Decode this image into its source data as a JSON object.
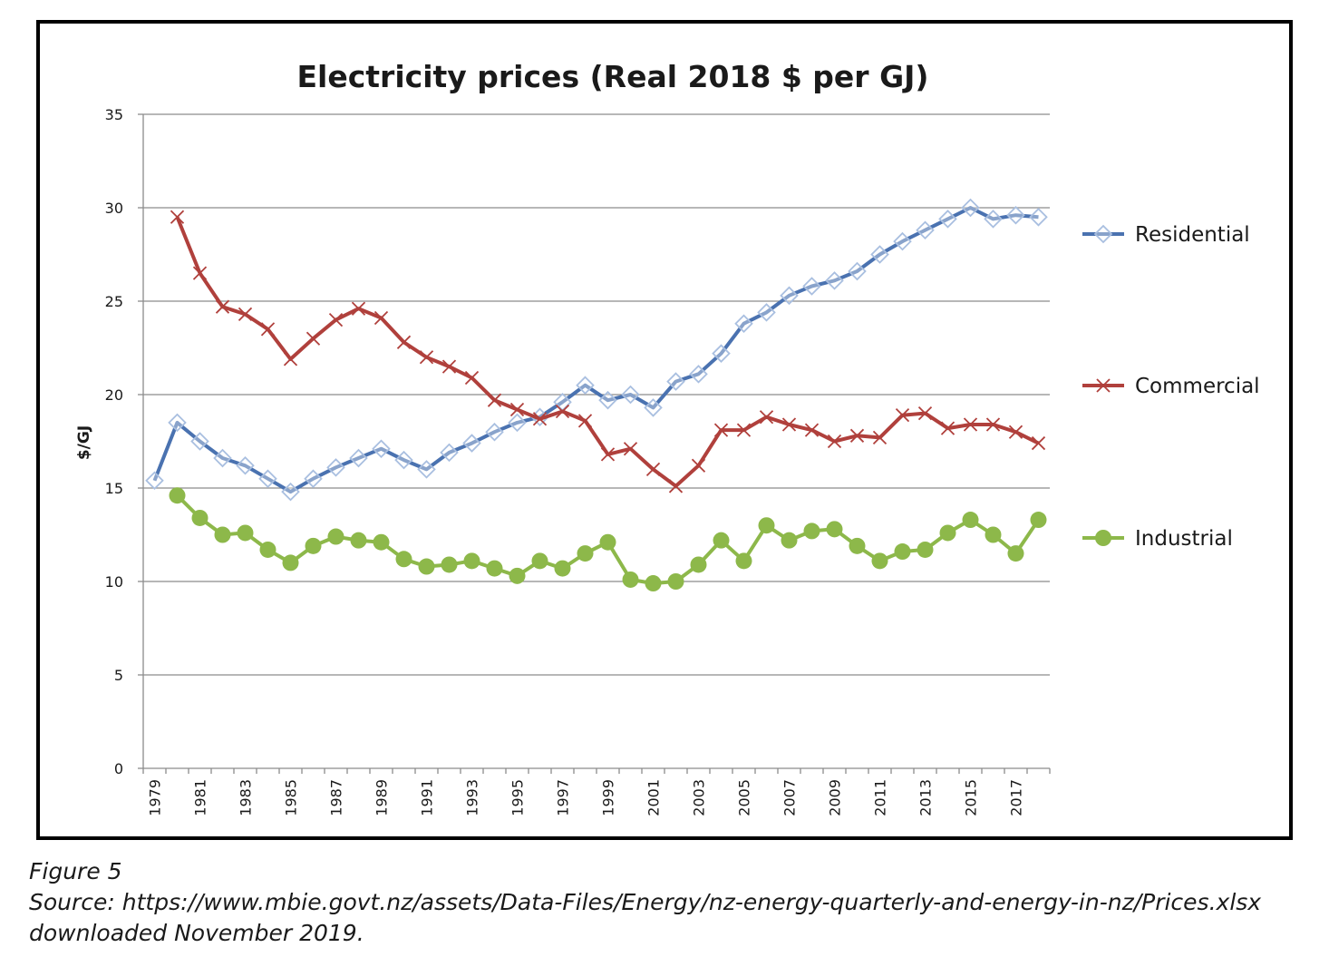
{
  "caption": {
    "figure": "Figure 5",
    "source": "Source: https://www.mbie.govt.nz/assets/Data-Files/Energy/nz-energy-quarterly-and-energy-in-nz/Prices.xlsx",
    "downloaded": "downloaded November 2019."
  },
  "chart_data": {
    "type": "line",
    "title": "Electricity prices (Real 2018 $ per GJ)",
    "xlabel": "",
    "ylabel": "$/GJ",
    "ylim": [
      0,
      35
    ],
    "yticks": [
      0,
      5,
      10,
      15,
      20,
      25,
      30,
      35
    ],
    "x": [
      1979,
      1980,
      1981,
      1982,
      1983,
      1984,
      1985,
      1986,
      1987,
      1988,
      1989,
      1990,
      1991,
      1992,
      1993,
      1994,
      1995,
      1996,
      1997,
      1998,
      1999,
      2000,
      2001,
      2002,
      2003,
      2004,
      2005,
      2006,
      2007,
      2008,
      2009,
      2010,
      2011,
      2012,
      2013,
      2014,
      2015,
      2016,
      2017,
      2018
    ],
    "xtick_labels": [
      "1979",
      "1981",
      "1983",
      "1985",
      "1987",
      "1989",
      "1991",
      "1993",
      "1995",
      "1997",
      "1999",
      "2001",
      "2003",
      "2005",
      "2007",
      "2009",
      "2011",
      "2013",
      "2015",
      "2017"
    ],
    "grid": true,
    "legend_position": "right",
    "series": [
      {
        "name": "Residential",
        "color": "#4a72b0",
        "marker": "diamond",
        "values": [
          15.4,
          18.5,
          17.5,
          16.6,
          16.2,
          15.5,
          14.8,
          15.5,
          16.1,
          16.6,
          17.1,
          16.5,
          16.0,
          16.9,
          17.4,
          18.0,
          18.5,
          18.8,
          19.6,
          20.5,
          19.7,
          20.0,
          19.3,
          20.7,
          21.1,
          22.2,
          23.8,
          24.4,
          25.3,
          25.8,
          26.1,
          26.6,
          27.5,
          28.2,
          28.8,
          29.4,
          30.0,
          29.4,
          29.6,
          29.5
        ]
      },
      {
        "name": "Commercial",
        "color": "#b0403c",
        "marker": "x",
        "values": [
          null,
          29.5,
          26.5,
          24.7,
          24.3,
          23.5,
          21.9,
          23.0,
          24.0,
          24.6,
          24.1,
          22.8,
          22.0,
          21.5,
          20.9,
          19.7,
          19.2,
          18.7,
          19.1,
          18.6,
          16.8,
          17.1,
          16.0,
          15.1,
          16.2,
          18.1,
          18.1,
          18.8,
          18.4,
          18.1,
          17.5,
          17.8,
          17.7,
          18.9,
          19.0,
          18.2,
          18.4,
          18.4,
          18.0,
          17.4
        ]
      },
      {
        "name": "Industrial",
        "color": "#8db84a",
        "marker": "circle",
        "values": [
          null,
          14.6,
          13.4,
          12.5,
          12.6,
          11.7,
          11.0,
          11.9,
          12.4,
          12.2,
          12.1,
          11.2,
          10.8,
          10.9,
          11.1,
          10.7,
          10.3,
          11.1,
          10.7,
          11.5,
          12.1,
          10.1,
          9.9,
          10.0,
          10.9,
          12.2,
          11.1,
          13.0,
          12.2,
          12.7,
          12.8,
          11.9,
          11.1,
          11.6,
          11.7,
          12.6,
          13.3,
          12.5,
          11.5,
          13.3
        ]
      }
    ]
  }
}
